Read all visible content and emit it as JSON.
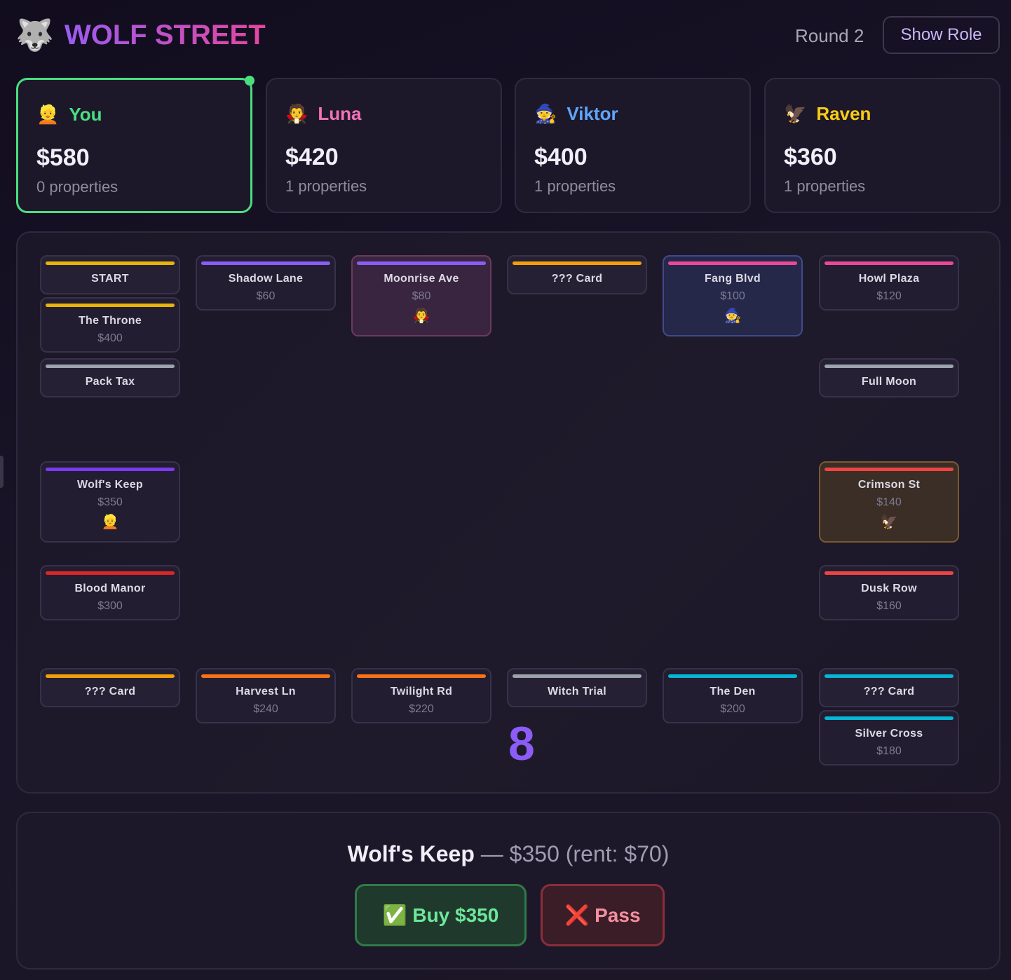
{
  "header": {
    "logo_icon": "🐺",
    "title": "WOLF STREET",
    "round": "Round 2",
    "show_role": "Show Role"
  },
  "players": [
    {
      "icon": "👱",
      "name": "You",
      "money": "$580",
      "props": "0 properties",
      "color": "#4ade80"
    },
    {
      "icon": "🧛",
      "name": "Luna",
      "money": "$420",
      "props": "1 properties",
      "color": "#f472b6"
    },
    {
      "icon": "🧙",
      "name": "Viktor",
      "money": "$400",
      "props": "1 properties",
      "color": "#60a5fa"
    },
    {
      "icon": "🦅",
      "name": "Raven",
      "money": "$360",
      "props": "1 properties",
      "color": "#facc15"
    }
  ],
  "cells": [
    {
      "name": "The Throne",
      "price": "$400",
      "color": "#eab308"
    },
    {
      "name": "START",
      "color": "#eab308"
    },
    {
      "name": "Shadow Lane",
      "price": "$60",
      "color": "#8b5cf6"
    },
    {
      "name": "Moonrise Ave",
      "price": "$80",
      "color": "#8b5cf6",
      "owner": "🧛"
    },
    {
      "name": "??? Card",
      "color": "#f59e0b"
    },
    {
      "name": "Fang Blvd",
      "price": "$100",
      "color": "#ec4899",
      "owner": "🧙"
    },
    {
      "name": "Howl Plaza",
      "price": "$120",
      "color": "#ec4899"
    },
    {
      "name": "Pack Tax",
      "color": "#9ca3af"
    },
    {
      "name": "Full Moon",
      "color": "#9ca3af"
    },
    {
      "name": "Wolf's Keep",
      "price": "$350",
      "color": "#7c3aed",
      "owner": "👱"
    },
    {
      "name": "Crimson St",
      "price": "$140",
      "color": "#ef4444",
      "owner": "🦅"
    },
    {
      "name": "Blood Manor",
      "price": "$300",
      "color": "#dc2626"
    },
    {
      "name": "Dusk Row",
      "price": "$160",
      "color": "#ef4444"
    },
    {
      "name": "??? Card",
      "color": "#f59e0b"
    },
    {
      "name": "Harvest Ln",
      "price": "$240",
      "color": "#f97316"
    },
    {
      "name": "Twilight Rd",
      "price": "$220",
      "color": "#f97316"
    },
    {
      "name": "Witch Trial",
      "color": "#9ca3af"
    },
    {
      "name": "The Den",
      "price": "$200",
      "color": "#06b6d4"
    },
    {
      "name": "Silver Cross",
      "price": "$180",
      "color": "#06b6d4"
    },
    {
      "name": "??? Card",
      "color": "#06b6d4"
    }
  ],
  "dice": "8",
  "action": {
    "property": "Wolf's Keep",
    "detail": " — $350 (rent: $70)",
    "buy_icon": "✅",
    "buy": "Buy $350",
    "pass_icon": "❌",
    "pass": "Pass"
  }
}
